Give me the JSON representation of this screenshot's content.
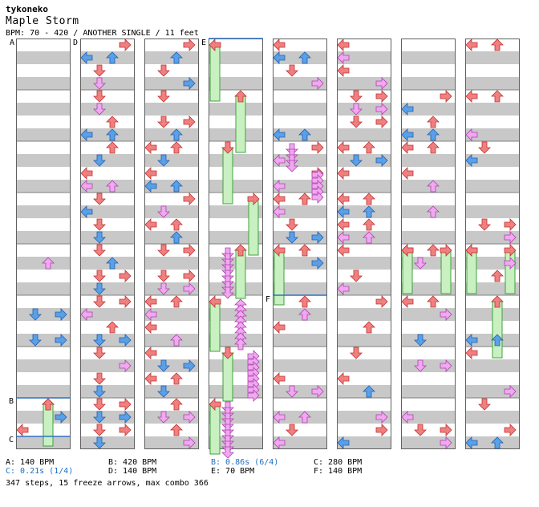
{
  "header": {
    "author": "tykoneko",
    "title": "Maple Storm",
    "meta": "BPM: 70 - 420 / ANOTHER SINGLE / 11 feet"
  },
  "markers": [
    {
      "label": "A",
      "column": 0
    },
    {
      "label": "B",
      "column": 0
    },
    {
      "label": "C",
      "column": 0
    },
    {
      "label": "D",
      "column": 1
    },
    {
      "label": "E",
      "column": 3
    },
    {
      "label": "F",
      "column": 4
    }
  ],
  "footer": {
    "col1": [
      "A: 140 BPM",
      "C: 0.21s (1/4)"
    ],
    "col2": [
      "B: 420 BPM",
      "D: 140 BPM"
    ],
    "col3": [
      "B: 0.86s (6/4)",
      "E: 70 BPM"
    ],
    "col4": [
      "C: 280 BPM",
      "F: 140 BPM"
    ],
    "summary": "347 steps, 15 freeze arrows, max combo 366"
  },
  "colors": {
    "red": "#f08080",
    "blue": "#5aa0e8",
    "pink": "#f0a8f0",
    "freeze": "#c8f0c0",
    "marker_line": "#3070c0",
    "stripe": "#c8c8c8",
    "footer_highlight": "#1e6fc0"
  }
}
